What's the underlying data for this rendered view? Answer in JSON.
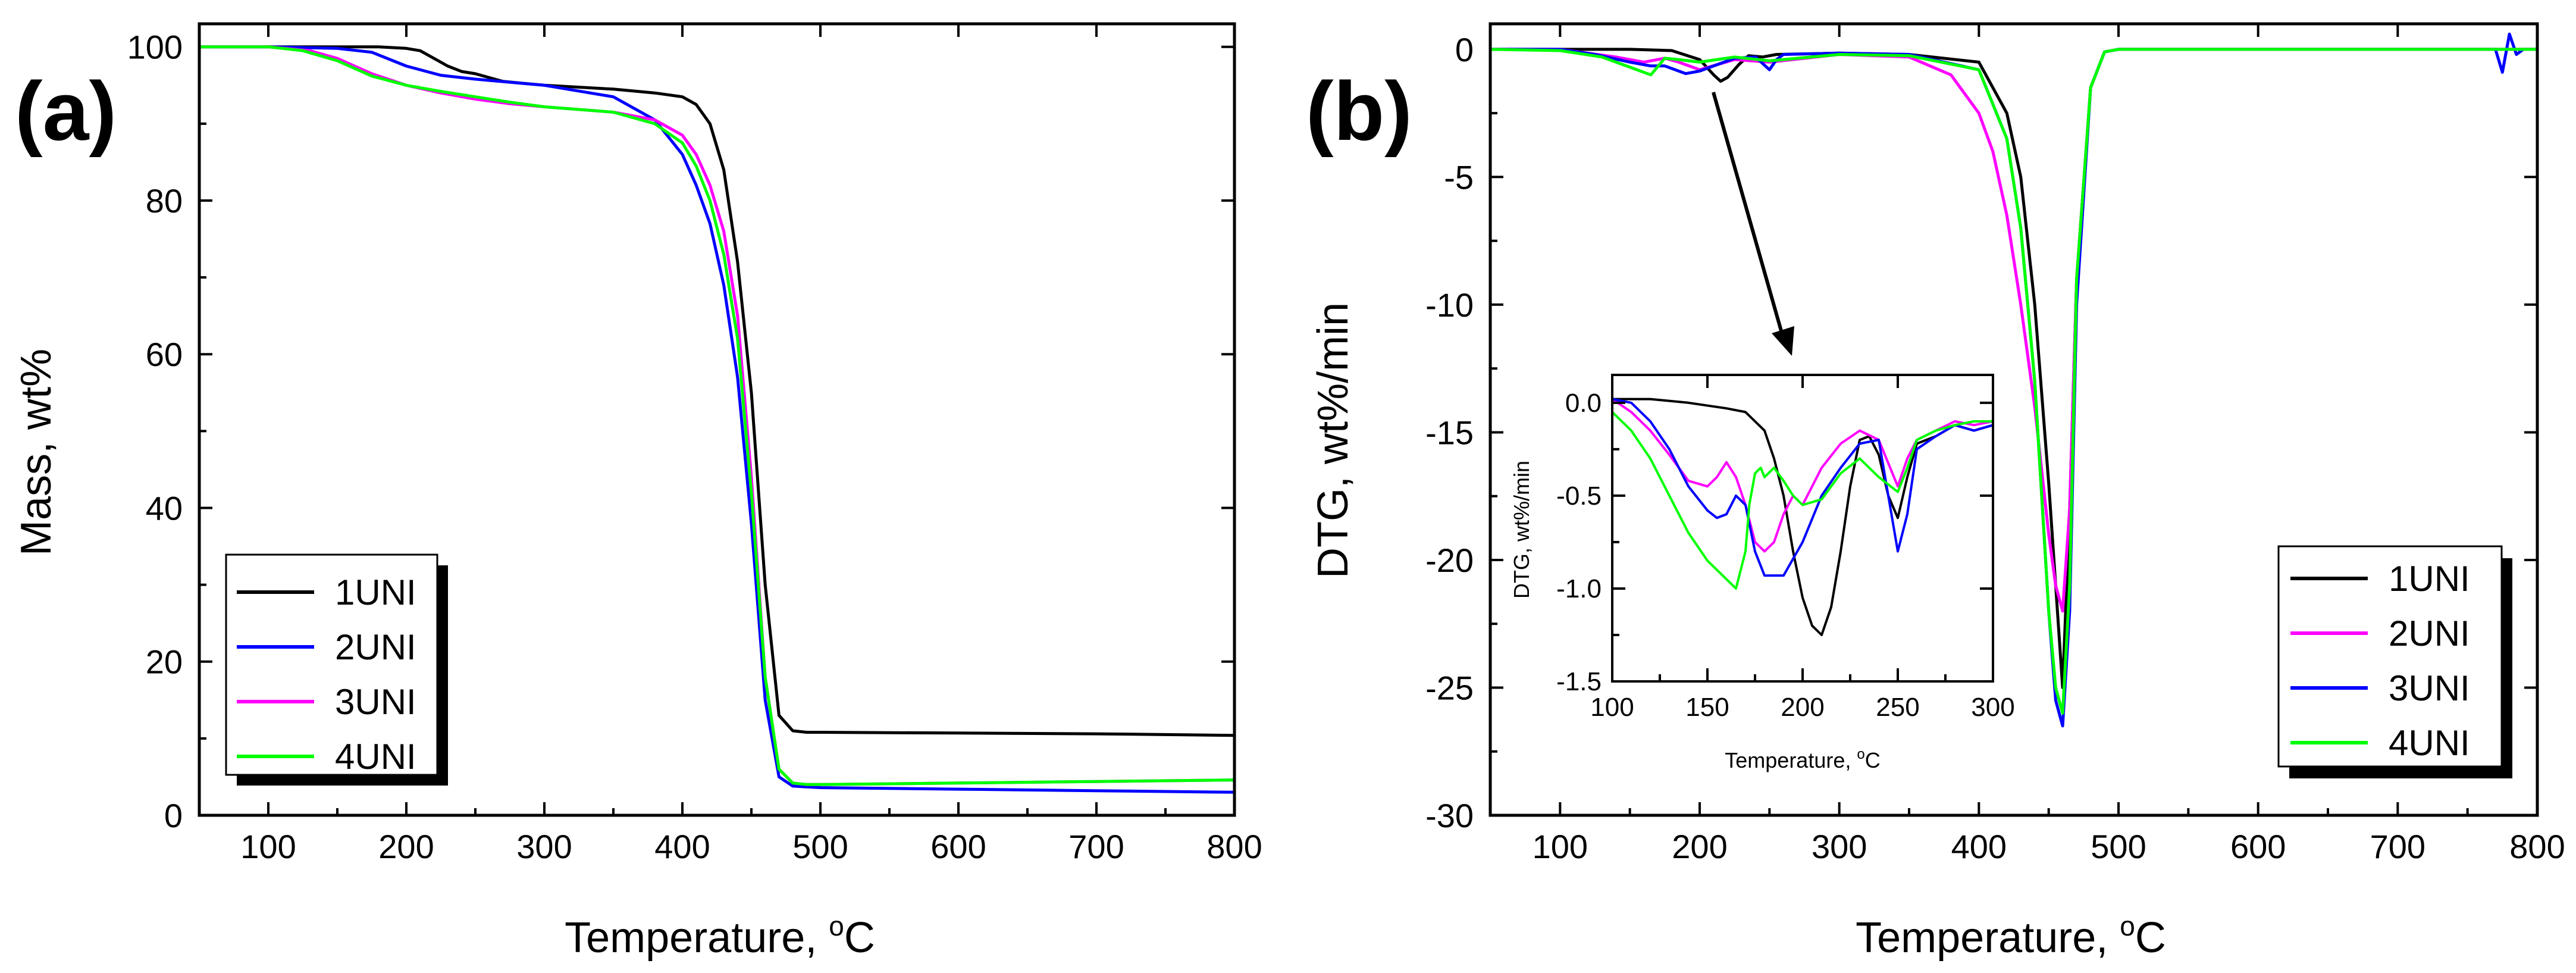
{
  "chart_data": [
    {
      "type": "line",
      "panel_label": "(a)",
      "xlabel": "Temperature, °C",
      "xlabel_main": "Temperature, ",
      "xlabel_sup": "o",
      "xlabel_unit": "C",
      "ylabel": "Mass, wt%",
      "xlim": [
        50,
        800
      ],
      "ylim": [
        0,
        103
      ],
      "xticks": [
        100,
        200,
        300,
        400,
        500,
        600,
        700,
        800
      ],
      "yticks": [
        0,
        20,
        40,
        60,
        80,
        100
      ],
      "legend_position": "bottom-left",
      "series": [
        {
          "name": "1UNI",
          "color": "#000000",
          "x": [
            50,
            100,
            150,
            180,
            200,
            210,
            220,
            230,
            240,
            250,
            260,
            270,
            300,
            350,
            380,
            400,
            410,
            420,
            430,
            440,
            450,
            460,
            470,
            480,
            490,
            500,
            600,
            700,
            800
          ],
          "y": [
            100,
            100,
            100,
            100,
            99.8,
            99.5,
            98.5,
            97.5,
            96.8,
            96.5,
            96,
            95.5,
            95,
            94.5,
            94,
            93.5,
            92.5,
            90,
            84,
            72,
            55,
            30,
            13,
            11,
            10.8,
            10.8,
            10.7,
            10.6,
            10.4
          ]
        },
        {
          "name": "2UNI",
          "color": "#0000ff",
          "x": [
            50,
            100,
            150,
            175,
            200,
            225,
            250,
            300,
            350,
            380,
            400,
            410,
            420,
            430,
            440,
            450,
            460,
            470,
            480,
            490,
            500,
            600,
            700,
            800
          ],
          "y": [
            100,
            100,
            99.8,
            99.3,
            97.5,
            96.3,
            95.8,
            95,
            93.5,
            90.5,
            86,
            82,
            77,
            69,
            57,
            38,
            15,
            5,
            3.8,
            3.7,
            3.6,
            3.4,
            3.2,
            3.0
          ]
        },
        {
          "name": "3UNI",
          "color": "#ff00ff",
          "x": [
            50,
            100,
            130,
            150,
            175,
            200,
            225,
            250,
            275,
            300,
            350,
            380,
            400,
            410,
            420,
            430,
            440,
            450,
            460,
            470,
            480,
            490,
            500,
            600,
            700,
            800
          ],
          "y": [
            100,
            100,
            99.5,
            98.5,
            96.5,
            95,
            94,
            93.2,
            92.6,
            92.2,
            91.5,
            90.5,
            88.5,
            86,
            82,
            76,
            65,
            44,
            18,
            6,
            4.2,
            4,
            4,
            4.2,
            4.4,
            4.6
          ]
        },
        {
          "name": "4UNI",
          "color": "#00ff00",
          "x": [
            50,
            100,
            125,
            150,
            175,
            200,
            225,
            250,
            275,
            300,
            350,
            380,
            400,
            410,
            420,
            430,
            440,
            450,
            460,
            470,
            480,
            490,
            500,
            600,
            700,
            800
          ],
          "y": [
            100,
            100,
            99.5,
            98.2,
            96.2,
            95,
            94.2,
            93.5,
            92.8,
            92.2,
            91.5,
            90,
            87.5,
            84.5,
            80,
            73,
            62,
            42,
            18,
            6,
            4.2,
            4,
            4,
            4.2,
            4.4,
            4.6
          ]
        }
      ],
      "legend": [
        "1UNI",
        "2UNI",
        "3UNI",
        "4UNI"
      ]
    },
    {
      "type": "line",
      "panel_label": "(b)",
      "xlabel": "Temperature, °C",
      "xlabel_main": "Temperature, ",
      "xlabel_sup": "o",
      "xlabel_unit": "C",
      "ylabel": "DTG, wt%/min",
      "xlim": [
        50,
        800
      ],
      "ylim": [
        -30,
        1
      ],
      "xticks": [
        100,
        200,
        300,
        400,
        500,
        600,
        700,
        800
      ],
      "yticks": [
        0,
        -5,
        -10,
        -15,
        -20,
        -25,
        -30
      ],
      "legend_position": "bottom-right",
      "series": [
        {
          "name": "1UNI",
          "color": "#000000",
          "x": [
            50,
            150,
            180,
            200,
            210,
            215,
            220,
            228,
            235,
            245,
            255,
            300,
            350,
            400,
            420,
            430,
            440,
            450,
            455,
            460,
            465,
            470,
            480,
            490,
            500,
            600,
            700,
            800
          ],
          "y": [
            0,
            0,
            -0.05,
            -0.4,
            -1.0,
            -1.25,
            -1.1,
            -0.6,
            -0.25,
            -0.3,
            -0.2,
            -0.15,
            -0.2,
            -0.5,
            -2.5,
            -5,
            -10,
            -17,
            -21,
            -25,
            -18,
            -9,
            -1.5,
            -0.1,
            0,
            0,
            0,
            0
          ]
        },
        {
          "name": "2UNI",
          "color": "#ff00ff",
          "x": [
            50,
            100,
            140,
            160,
            175,
            185,
            200,
            225,
            250,
            300,
            350,
            380,
            400,
            410,
            420,
            430,
            440,
            450,
            455,
            460,
            465,
            470,
            480,
            490,
            500,
            600,
            700,
            800
          ],
          "y": [
            0,
            0,
            -0.3,
            -0.5,
            -0.35,
            -0.5,
            -0.8,
            -0.4,
            -0.5,
            -0.2,
            -0.3,
            -1,
            -2.5,
            -4,
            -6.5,
            -10,
            -14,
            -19,
            -21,
            -22,
            -18,
            -9,
            -1.5,
            -0.1,
            0,
            0,
            0,
            0
          ]
        },
        {
          "name": "3UNI",
          "color": "#0000ff",
          "x": [
            50,
            100,
            125,
            150,
            165,
            175,
            190,
            200,
            225,
            240,
            250,
            255,
            260,
            300,
            350,
            400,
            420,
            430,
            440,
            450,
            455,
            460,
            465,
            470,
            480,
            490,
            500,
            600,
            700,
            770,
            775,
            780,
            785,
            790,
            800
          ],
          "y": [
            0,
            0,
            -0.2,
            -0.5,
            -0.65,
            -0.65,
            -0.95,
            -0.85,
            -0.35,
            -0.3,
            -0.8,
            -0.4,
            -0.2,
            -0.15,
            -0.2,
            -0.8,
            -3.5,
            -7,
            -13,
            -22,
            -25.5,
            -26.5,
            -22,
            -10,
            -1.5,
            -0.1,
            0,
            0,
            0,
            0,
            -0.9,
            0.6,
            -0.2,
            0,
            0
          ]
        },
        {
          "name": "4UNI",
          "color": "#00ff00",
          "x": [
            50,
            100,
            130,
            150,
            165,
            175,
            185,
            200,
            225,
            250,
            300,
            350,
            400,
            420,
            430,
            440,
            450,
            455,
            460,
            465,
            470,
            480,
            490,
            500,
            600,
            700,
            800
          ],
          "y": [
            0,
            -0.05,
            -0.3,
            -0.7,
            -1.0,
            -0.35,
            -0.4,
            -0.5,
            -0.3,
            -0.45,
            -0.2,
            -0.25,
            -0.8,
            -3.5,
            -7,
            -13,
            -22,
            -25,
            -26,
            -21,
            -9,
            -1.5,
            -0.1,
            0,
            0,
            0,
            0
          ]
        }
      ],
      "legend": [
        "1UNI",
        "2UNI",
        "3UNI",
        "4UNI"
      ],
      "inset": {
        "xlabel": "Temperature, °C",
        "xlabel_main": "Temperature, ",
        "xlabel_sup": "o",
        "xlabel_unit": "C",
        "ylabel": "DTG, wt%/min",
        "xlim": [
          100,
          300
        ],
        "ylim": [
          -1.5,
          0.15
        ],
        "xticks": [
          100,
          150,
          200,
          250,
          300
        ],
        "yticks": [
          0.0,
          -0.5,
          -1.0,
          -1.5
        ],
        "ytick_labels": [
          "0.0",
          "-0.5",
          "-1.0",
          "-1.5"
        ],
        "series": [
          {
            "name": "1UNI",
            "color": "#000000",
            "x": [
              100,
              120,
              140,
              160,
              170,
              175,
              180,
              185,
              190,
              195,
              200,
              205,
              210,
              215,
              220,
              225,
              230,
              235,
              240,
              245,
              250,
              255,
              260,
              270,
              280,
              290,
              300
            ],
            "y": [
              0.02,
              0.02,
              0.0,
              -0.03,
              -0.05,
              -0.1,
              -0.15,
              -0.3,
              -0.5,
              -0.8,
              -1.05,
              -1.2,
              -1.25,
              -1.1,
              -0.8,
              -0.45,
              -0.2,
              -0.18,
              -0.28,
              -0.5,
              -0.62,
              -0.4,
              -0.22,
              -0.18,
              -0.12,
              -0.15,
              -0.12
            ]
          },
          {
            "name": "2UNI",
            "color": "#ff00ff",
            "x": [
              100,
              110,
              120,
              130,
              140,
              150,
              155,
              160,
              165,
              170,
              175,
              180,
              185,
              190,
              195,
              200,
              210,
              220,
              230,
              240,
              250,
              255,
              260,
              270,
              280,
              290,
              300
            ],
            "y": [
              0.02,
              -0.05,
              -0.15,
              -0.28,
              -0.42,
              -0.45,
              -0.4,
              -0.32,
              -0.4,
              -0.55,
              -0.75,
              -0.8,
              -0.75,
              -0.6,
              -0.5,
              -0.55,
              -0.35,
              -0.22,
              -0.15,
              -0.2,
              -0.45,
              -0.3,
              -0.2,
              -0.15,
              -0.1,
              -0.12,
              -0.1
            ]
          },
          {
            "name": "3UNI",
            "color": "#0000ff",
            "x": [
              100,
              110,
              120,
              130,
              140,
              150,
              155,
              160,
              165,
              170,
              175,
              180,
              190,
              200,
              210,
              220,
              230,
              240,
              245,
              250,
              255,
              260,
              270,
              280,
              290,
              300
            ],
            "y": [
              0.02,
              0.0,
              -0.1,
              -0.25,
              -0.45,
              -0.58,
              -0.62,
              -0.6,
              -0.5,
              -0.55,
              -0.8,
              -0.93,
              -0.93,
              -0.75,
              -0.5,
              -0.35,
              -0.22,
              -0.2,
              -0.5,
              -0.8,
              -0.6,
              -0.25,
              -0.18,
              -0.12,
              -0.15,
              -0.12
            ]
          },
          {
            "name": "4UNI",
            "color": "#00ff00",
            "x": [
              100,
              110,
              120,
              130,
              140,
              150,
              160,
              165,
              170,
              172,
              175,
              178,
              180,
              185,
              190,
              195,
              200,
              210,
              220,
              230,
              240,
              250,
              255,
              260,
              270,
              280,
              290,
              300
            ],
            "y": [
              -0.05,
              -0.15,
              -0.3,
              -0.5,
              -0.7,
              -0.85,
              -0.95,
              -1.0,
              -0.8,
              -0.55,
              -0.38,
              -0.35,
              -0.4,
              -0.35,
              -0.42,
              -0.5,
              -0.55,
              -0.52,
              -0.38,
              -0.3,
              -0.4,
              -0.48,
              -0.35,
              -0.2,
              -0.15,
              -0.12,
              -0.1,
              -0.1
            ]
          }
        ]
      }
    }
  ]
}
